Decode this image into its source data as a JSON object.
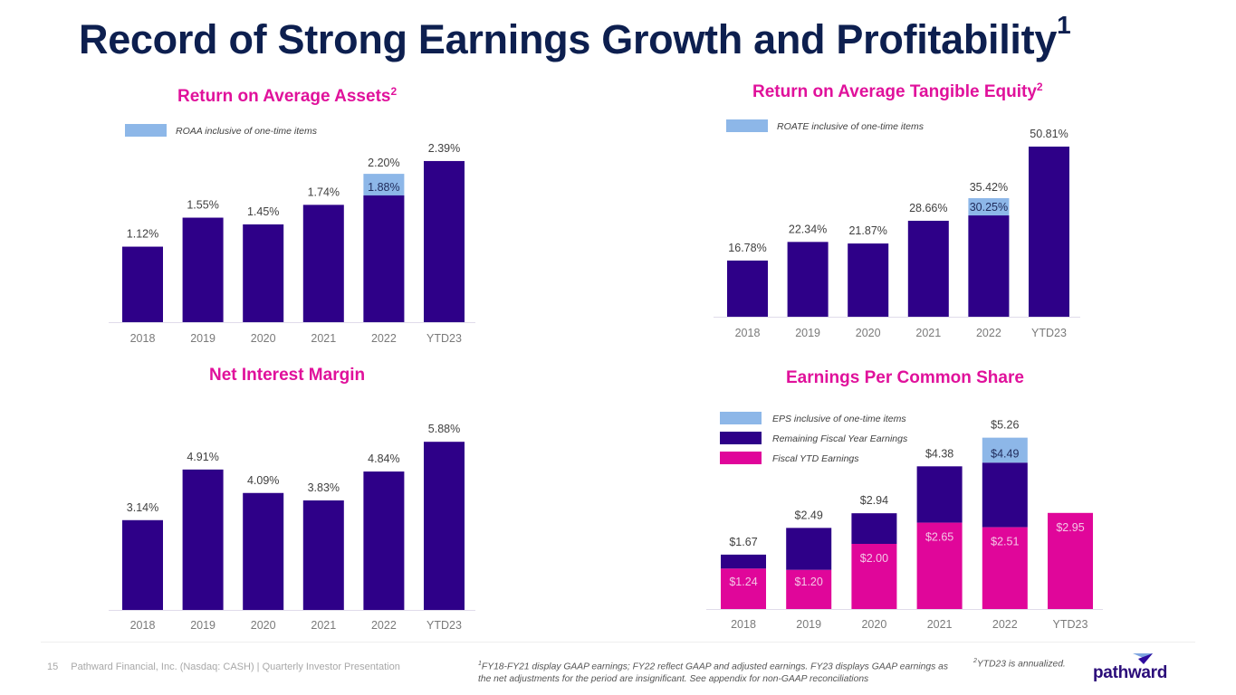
{
  "slide": {
    "title": "Record of Strong Earnings Growth and Profitability",
    "title_sup": "1",
    "page_number": "15",
    "footer_text": "Pathward Financial, Inc. (Nasdaq: CASH) | Quarterly Investor Presentation",
    "footnote1_sup": "1",
    "footnote1": "FY18-FY21 display GAAP earnings; FY22 reflect GAAP and adjusted earnings. FY23 displays GAAP earnings as the net adjustments for the period are insignificant. See appendix for non-GAAP reconciliations",
    "footnote2_sup": "2",
    "footnote2": "YTD23 is annualized.",
    "logo_text": "pathward"
  },
  "colors": {
    "title": "#0d1f4f",
    "chart_title": "#e0119b",
    "primary_bar": "#2e0088",
    "one_time_bar": "#8db7e8",
    "ytd_bar": "#e0069a",
    "axis_line": "#e0dcea"
  },
  "chart_data": [
    {
      "id": "roaa",
      "type": "bar",
      "title": "Return on Average Assets",
      "title_sup": "2",
      "categories": [
        "2018",
        "2019",
        "2020",
        "2021",
        "2022",
        "YTD23"
      ],
      "series": [
        {
          "name": "ROAA",
          "values": [
            1.12,
            1.55,
            1.45,
            1.74,
            1.88,
            2.39
          ],
          "labels": [
            "1.12%",
            "1.55%",
            "1.45%",
            "1.74%",
            "1.88%",
            "2.39%"
          ]
        },
        {
          "name": "ROAA inclusive of one-time items",
          "values": [
            null,
            null,
            null,
            null,
            2.2,
            null
          ],
          "labels": [
            "",
            "",
            "",
            "",
            "2.20%",
            ""
          ]
        }
      ],
      "legend": [
        {
          "label": "ROAA inclusive of one-time items",
          "color": "#8db7e8"
        }
      ],
      "legend_position": "top-left",
      "ylim": [
        0,
        2.39
      ],
      "unit": "%"
    },
    {
      "id": "roate",
      "type": "bar",
      "title": "Return on Average Tangible Equity",
      "title_sup": "2",
      "categories": [
        "2018",
        "2019",
        "2020",
        "2021",
        "2022",
        "YTD23"
      ],
      "series": [
        {
          "name": "ROATE",
          "values": [
            16.78,
            22.34,
            21.87,
            28.66,
            30.25,
            50.81
          ],
          "labels": [
            "16.78%",
            "22.34%",
            "21.87%",
            "28.66%",
            "30.25%",
            "50.81%"
          ]
        },
        {
          "name": "ROATE inclusive of one-time items",
          "values": [
            null,
            null,
            null,
            null,
            35.42,
            null
          ],
          "labels": [
            "",
            "",
            "",
            "",
            "35.42%",
            ""
          ]
        }
      ],
      "legend": [
        {
          "label": "ROATE inclusive of one-time items",
          "color": "#8db7e8"
        }
      ],
      "legend_position": "top-left",
      "ylim": [
        0,
        50.81
      ],
      "unit": "%"
    },
    {
      "id": "nim",
      "type": "bar",
      "title": "Net Interest Margin",
      "title_sup": "",
      "categories": [
        "2018",
        "2019",
        "2020",
        "2021",
        "2022",
        "YTD23"
      ],
      "series": [
        {
          "name": "NIM",
          "values": [
            3.14,
            4.91,
            4.09,
            3.83,
            4.84,
            5.88
          ],
          "labels": [
            "3.14%",
            "4.91%",
            "4.09%",
            "3.83%",
            "4.84%",
            "5.88%"
          ]
        }
      ],
      "legend": [],
      "ylim": [
        0,
        5.88
      ],
      "unit": "%"
    },
    {
      "id": "eps",
      "type": "bar",
      "stacked": true,
      "title": "Earnings Per Common Share",
      "title_sup": "",
      "categories": [
        "2018",
        "2019",
        "2020",
        "2021",
        "2022",
        "YTD23"
      ],
      "series": [
        {
          "name": "Fiscal YTD Earnings",
          "values": [
            1.24,
            1.2,
            2.0,
            2.65,
            2.51,
            2.95
          ],
          "labels": [
            "$1.24",
            "$1.20",
            "$2.00",
            "$2.65",
            "$2.51",
            "$2.95"
          ]
        },
        {
          "name": "Remaining Fiscal Year Earnings",
          "totals": [
            1.67,
            2.49,
            2.94,
            4.38,
            4.49,
            null
          ],
          "labels": [
            "$1.67",
            "$2.49",
            "$2.94",
            "$4.38",
            "$4.49",
            ""
          ]
        },
        {
          "name": "EPS inclusive of one-time items",
          "totals": [
            null,
            null,
            null,
            null,
            5.26,
            null
          ],
          "labels": [
            "",
            "",
            "",
            "",
            "$5.26",
            ""
          ]
        }
      ],
      "legend": [
        {
          "label": "EPS inclusive of one-time items",
          "color": "#8db7e8"
        },
        {
          "label": "Remaining Fiscal Year Earnings",
          "color": "#2e0088"
        },
        {
          "label": "Fiscal YTD Earnings",
          "color": "#e0069a"
        }
      ],
      "legend_position": "top-left",
      "ylim": [
        0,
        5.26
      ],
      "unit": "$"
    }
  ]
}
